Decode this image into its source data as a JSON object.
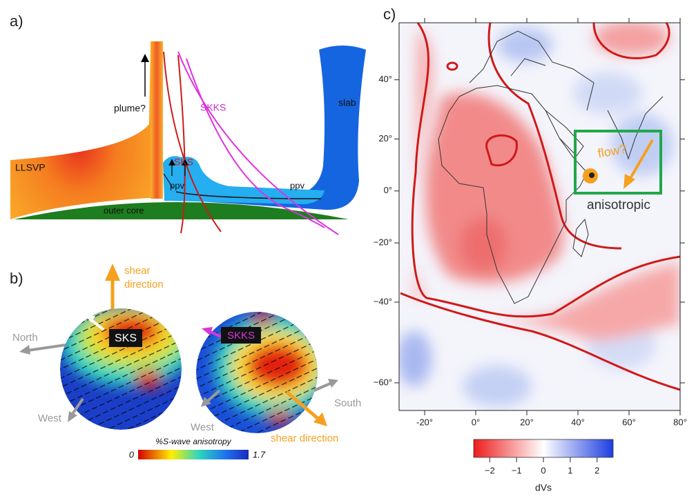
{
  "panel_a": {
    "label": "a)",
    "plume": "plume?",
    "skks": "SKKS",
    "sks": "SKS",
    "slab": "slab",
    "llsvp": "LLSVP",
    "ppv_left": "ppv",
    "ppv_right": "ppv",
    "outer_core": "outer core"
  },
  "panel_b": {
    "label": "b)",
    "shear_top": [
      "shear",
      "direction"
    ],
    "north": "North",
    "west_left": "West",
    "sks": "SKS",
    "skks": "SKKS",
    "west_right": "West",
    "south": "South",
    "shear_bottom": "shear direction",
    "colorbar": {
      "title": "%S-wave anisotropy",
      "min": 0,
      "max": 1.7
    }
  },
  "panel_c": {
    "label": "c)",
    "flow": "flow?",
    "anisotropic": "anisotropic",
    "map": {
      "xlim": [
        -30,
        80
      ],
      "ylim": [
        -65,
        55
      ],
      "xticks": [
        {
          "value": -20,
          "label": "-20°"
        },
        {
          "value": 0,
          "label": "0°"
        },
        {
          "value": 20,
          "label": "20°"
        },
        {
          "value": 40,
          "label": "40°"
        },
        {
          "value": 60,
          "label": "60°"
        },
        {
          "value": 80,
          "label": "80°"
        }
      ],
      "yticks": [
        {
          "value": 40,
          "label": "40°"
        },
        {
          "value": 20,
          "label": "20°"
        },
        {
          "value": 0,
          "label": "0°"
        },
        {
          "value": -20,
          "label": "−20°"
        },
        {
          "value": -40,
          "label": "−40°"
        },
        {
          "value": -60,
          "label": "−60°"
        }
      ]
    },
    "colorbar": {
      "label": "dVs",
      "lim": [
        -2.6,
        2.6
      ],
      "ticks": [
        {
          "value": -2,
          "label": "−2"
        },
        {
          "value": -1,
          "label": "−1"
        },
        0,
        1,
        2
      ]
    }
  }
}
